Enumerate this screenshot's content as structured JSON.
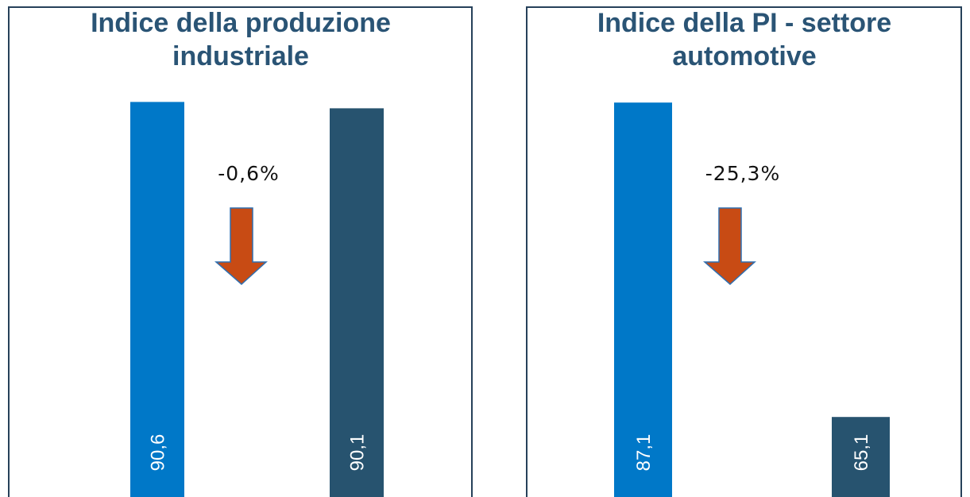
{
  "chart_data": [
    {
      "type": "bar",
      "title": "Indice della produzione industriale",
      "categories": [
        null,
        null
      ],
      "values": [
        90.6,
        90.1
      ],
      "value_labels": [
        "90,6",
        "90,1"
      ],
      "colors": [
        "#0078c8",
        "#27536f"
      ],
      "ylim": [
        59.5,
        91
      ],
      "annotation": "-0,6%"
    },
    {
      "type": "bar",
      "title": "Indice della PI - settore automotive",
      "categories": [
        null,
        null
      ],
      "values": [
        87.1,
        65.1
      ],
      "value_labels": [
        "87,1",
        "65,1"
      ],
      "colors": [
        "#0078c8",
        "#27536f"
      ],
      "ylim": [
        59.5,
        87.5
      ],
      "annotation": "-25,3%"
    }
  ]
}
